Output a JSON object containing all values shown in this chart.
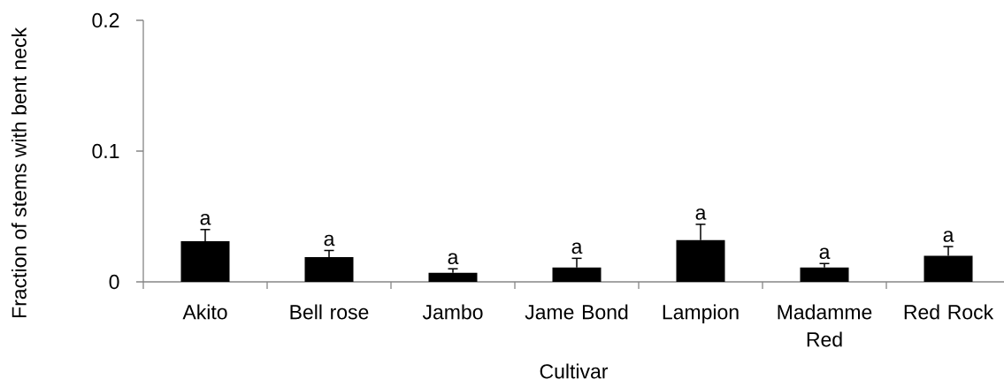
{
  "chart_data": {
    "type": "bar",
    "xlabel": "Cultivar",
    "ylabel": "Fraction of stems with bent neck",
    "categories": [
      "Akito",
      "Bell rose",
      "Jambo",
      "Jame Bond",
      "Lampion",
      "Madamme Red",
      "Red Rock"
    ],
    "values": [
      0.031,
      0.019,
      0.007,
      0.011,
      0.032,
      0.011,
      0.02
    ],
    "color": "#000000",
    "errors": [
      [
        0.031,
        0.04
      ],
      [
        0.019,
        0.024
      ],
      [
        0.007,
        0.01
      ],
      [
        0.011,
        0.018
      ],
      [
        0.032,
        0.044
      ],
      [
        0.011,
        0.014
      ],
      [
        0.02,
        0.027
      ]
    ],
    "ylim": [
      0,
      0.2
    ],
    "yticks": [
      0,
      0.1,
      0.2
    ],
    "annotations": [
      {
        "text": "a",
        "x": "Akito",
        "y": 0.04
      },
      {
        "text": "a",
        "x": "Bell rose",
        "y": 0.024
      },
      {
        "text": "a",
        "x": "Jambo",
        "y": 0.01
      },
      {
        "text": "a",
        "x": "Jame Bond",
        "y": 0.018
      },
      {
        "text": "a",
        "x": "Lampion",
        "y": 0.044
      },
      {
        "text": "a",
        "x": "Madamme Red",
        "y": 0.014
      },
      {
        "text": "a",
        "x": "Red Rock",
        "y": 0.027
      }
    ]
  }
}
